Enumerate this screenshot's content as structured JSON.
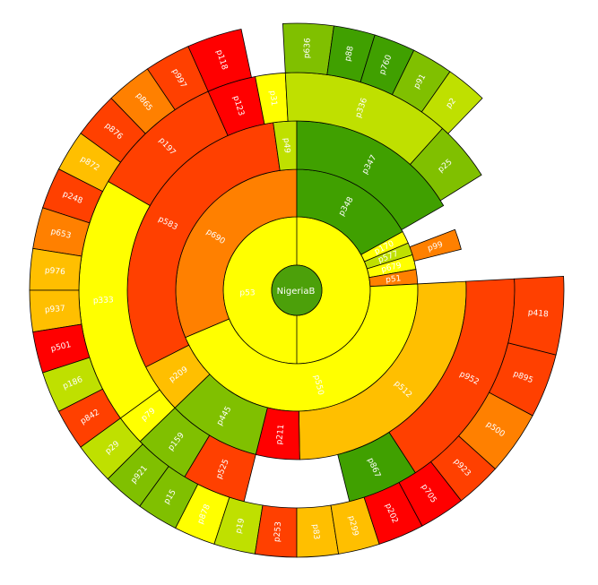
{
  "chart_data": {
    "type": "sunburst",
    "title": "",
    "root": {
      "label": "NigeriaB",
      "color": "#4ca00a"
    },
    "colors": {
      "red": "#ff0000",
      "red_orange": "#ff4000",
      "orange": "#ff8000",
      "amber": "#ffbf00",
      "yellow": "#ffff00",
      "yellow_green": "#bfe000",
      "light_green": "#80c000",
      "green": "#40a000"
    },
    "rings": [
      {
        "level": 1,
        "segments": [
          {
            "label": "p53",
            "start": 0,
            "end": 360,
            "color": "yellow"
          }
        ]
      },
      {
        "level": 2,
        "segments": [
          {
            "label": "p690",
            "start": 247,
            "end": 360,
            "color": "orange"
          },
          {
            "label": "p348",
            "start": 0,
            "end": 61,
            "color": "green"
          },
          {
            "label": "p170",
            "start": 61,
            "end": 67,
            "color": "yellow"
          },
          {
            "label": "p577",
            "start": 67,
            "end": 73,
            "color": "yellow_green"
          },
          {
            "label": "p679",
            "start": 73,
            "end": 80,
            "color": "yellow"
          },
          {
            "label": "p51",
            "start": 80,
            "end": 87,
            "color": "orange"
          },
          {
            "label": "p550",
            "start": 87,
            "end": 247,
            "color": "yellow"
          }
        ]
      },
      {
        "level": 3,
        "segments": [
          {
            "label": "p583",
            "start": 243,
            "end": 352,
            "color": "red_orange"
          },
          {
            "label": "p49",
            "start": 352,
            "end": 360,
            "color": "yellow_green"
          },
          {
            "label": "p347",
            "start": 0,
            "end": 60,
            "color": "green"
          },
          {
            "label": "p99",
            "start": 69,
            "end": 76,
            "color": "orange"
          },
          {
            "label": "p512",
            "start": 87,
            "end": 179,
            "color": "amber"
          },
          {
            "label": "p211",
            "start": 179,
            "end": 194,
            "color": "red"
          },
          {
            "label": "p445",
            "start": 194,
            "end": 226,
            "color": "light_green"
          },
          {
            "label": "p209",
            "start": 226,
            "end": 243,
            "color": "amber"
          }
        ]
      },
      {
        "level": 4,
        "segments": [
          {
            "label": "p333",
            "start": 234,
            "end": 300,
            "color": "yellow"
          },
          {
            "label": "p197",
            "start": 300,
            "end": 336,
            "color": "red_orange"
          },
          {
            "label": "p123",
            "start": 336,
            "end": 349,
            "color": "red"
          },
          {
            "label": "p31",
            "start": 349,
            "end": 357,
            "color": "yellow"
          },
          {
            "label": "p336",
            "start": 357,
            "end": 42,
            "color": "yellow_green"
          },
          {
            "label": "p25",
            "start": 42,
            "end": 58,
            "color": "light_green"
          },
          {
            "label": "p952",
            "start": 87,
            "end": 147,
            "color": "red_orange"
          },
          {
            "label": "p867",
            "start": 147,
            "end": 166,
            "color": "green"
          },
          {
            "label": "p525",
            "start": 194,
            "end": 211,
            "color": "red_orange"
          },
          {
            "label": "p159",
            "start": 211,
            "end": 226,
            "color": "light_green"
          },
          {
            "label": "p79",
            "start": 226,
            "end": 234,
            "color": "yellow"
          }
        ]
      },
      {
        "level": 5,
        "segments": [
          {
            "label": "p118",
            "start": 336,
            "end": 348,
            "color": "red"
          },
          {
            "label": "p997",
            "start": 326,
            "end": 336,
            "color": "red_orange"
          },
          {
            "label": "p865",
            "start": 316,
            "end": 326,
            "color": "orange"
          },
          {
            "label": "p876",
            "start": 306,
            "end": 316,
            "color": "red_orange"
          },
          {
            "label": "p872",
            "start": 297,
            "end": 306,
            "color": "amber"
          },
          {
            "label": "p248",
            "start": 288,
            "end": 297,
            "color": "red_orange"
          },
          {
            "label": "p653",
            "start": 279,
            "end": 288,
            "color": "orange"
          },
          {
            "label": "p976",
            "start": 270,
            "end": 279,
            "color": "amber"
          },
          {
            "label": "p937",
            "start": 261,
            "end": 270,
            "color": "amber"
          },
          {
            "label": "p501",
            "start": 252,
            "end": 261,
            "color": "red"
          },
          {
            "label": "p186",
            "start": 243,
            "end": 252,
            "color": "yellow_green"
          },
          {
            "label": "p842",
            "start": 234,
            "end": 243,
            "color": "red_orange"
          },
          {
            "label": "p29",
            "start": 225,
            "end": 234,
            "color": "yellow_green"
          },
          {
            "label": "p921",
            "start": 216,
            "end": 225,
            "color": "light_green"
          },
          {
            "label": "p15",
            "start": 207,
            "end": 216,
            "color": "light_green"
          },
          {
            "label": "p878",
            "start": 198,
            "end": 207,
            "color": "yellow"
          },
          {
            "label": "p19",
            "start": 189,
            "end": 198,
            "color": "yellow_green"
          },
          {
            "label": "p253",
            "start": 180,
            "end": 189,
            "color": "red_orange"
          },
          {
            "label": "p83",
            "start": 171,
            "end": 180,
            "color": "amber"
          },
          {
            "label": "p299",
            "start": 162,
            "end": 171,
            "color": "amber"
          },
          {
            "label": "p202",
            "start": 152,
            "end": 162,
            "color": "red"
          },
          {
            "label": "p705",
            "start": 142,
            "end": 152,
            "color": "red"
          },
          {
            "label": "p923",
            "start": 132,
            "end": 142,
            "color": "red_orange"
          },
          {
            "label": "p500",
            "start": 118,
            "end": 132,
            "color": "orange"
          },
          {
            "label": "p895",
            "start": 104,
            "end": 118,
            "color": "red_orange"
          },
          {
            "label": "p418",
            "start": 87,
            "end": 104,
            "color": "red_orange"
          },
          {
            "label": "p636",
            "start": 357,
            "end": 8,
            "color": "light_green"
          },
          {
            "label": "p88",
            "start": 8,
            "end": 17,
            "color": "green"
          },
          {
            "label": "p760",
            "start": 17,
            "end": 26,
            "color": "green"
          },
          {
            "label": "p91",
            "start": 26,
            "end": 35,
            "color": "light_green"
          },
          {
            "label": "p2",
            "start": 35,
            "end": 44,
            "color": "yellow_green"
          }
        ]
      }
    ]
  }
}
